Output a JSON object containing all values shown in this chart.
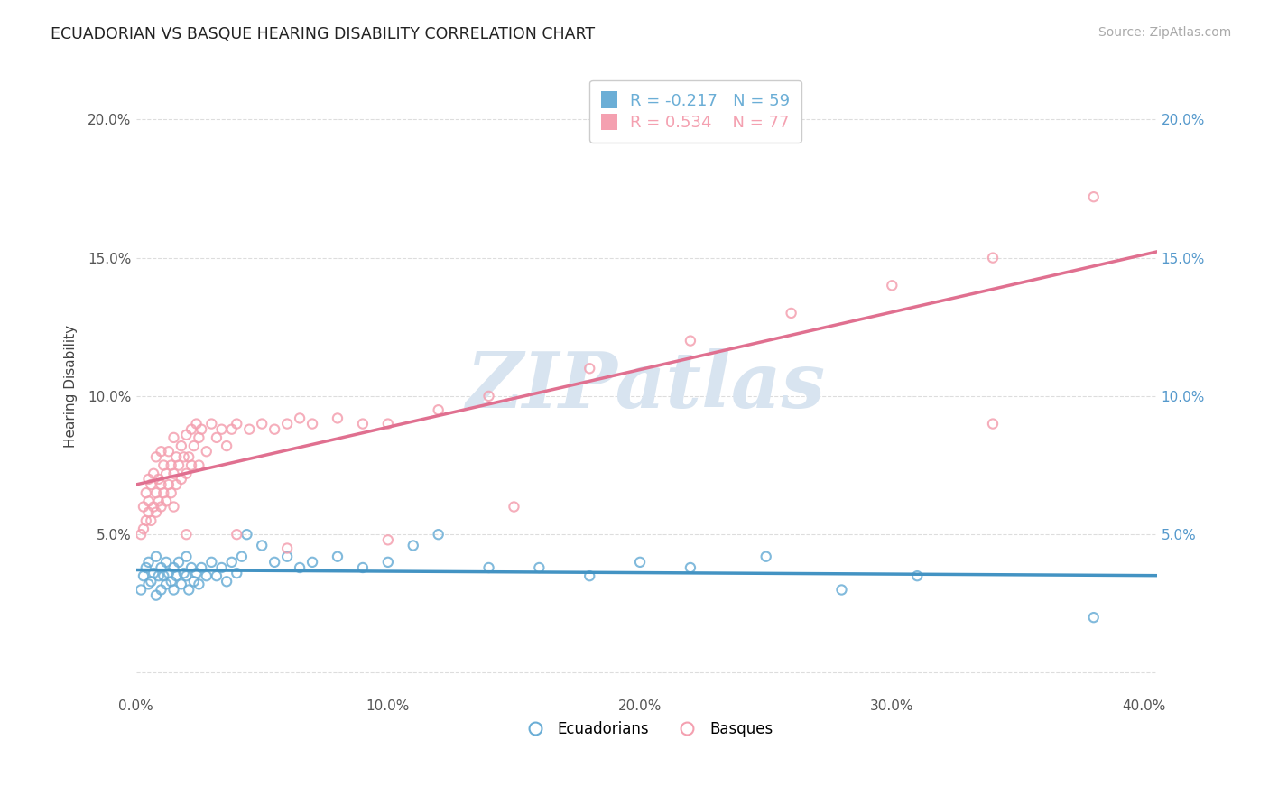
{
  "title": "ECUADORIAN VS BASQUE HEARING DISABILITY CORRELATION CHART",
  "source": "Source: ZipAtlas.com",
  "ylabel": "Hearing Disability",
  "xlim": [
    0.0,
    0.405
  ],
  "ylim": [
    -0.008,
    0.215
  ],
  "xticks": [
    0.0,
    0.1,
    0.2,
    0.3,
    0.4
  ],
  "xtick_labels": [
    "0.0%",
    "10.0%",
    "20.0%",
    "30.0%",
    "40.0%"
  ],
  "yticks": [
    0.0,
    0.05,
    0.1,
    0.15,
    0.2
  ],
  "left_ytick_labels": [
    "",
    "5.0%",
    "10.0%",
    "15.0%",
    "20.0%"
  ],
  "right_ytick_labels": [
    "",
    "5.0%",
    "10.0%",
    "15.0%",
    "20.0%"
  ],
  "ecuadorian_color": "#6baed6",
  "basque_color": "#f4a0b0",
  "trend_ecu_color": "#4393c3",
  "trend_bas_color": "#e07090",
  "ecuadorian_R": -0.217,
  "ecuadorian_N": 59,
  "basque_R": 0.534,
  "basque_N": 77,
  "watermark": "ZIPatlas",
  "watermark_color": "#d8e4f0",
  "legend_ecuadorians": "Ecuadorians",
  "legend_basques": "Basques",
  "ecu_x": [
    0.002,
    0.003,
    0.004,
    0.005,
    0.005,
    0.006,
    0.007,
    0.008,
    0.008,
    0.009,
    0.01,
    0.01,
    0.011,
    0.012,
    0.012,
    0.013,
    0.014,
    0.015,
    0.015,
    0.016,
    0.017,
    0.018,
    0.019,
    0.02,
    0.02,
    0.021,
    0.022,
    0.023,
    0.024,
    0.025,
    0.026,
    0.028,
    0.03,
    0.032,
    0.034,
    0.036,
    0.038,
    0.04,
    0.042,
    0.044,
    0.05,
    0.055,
    0.06,
    0.065,
    0.07,
    0.08,
    0.09,
    0.1,
    0.11,
    0.12,
    0.14,
    0.16,
    0.18,
    0.2,
    0.22,
    0.25,
    0.28,
    0.31,
    0.38
  ],
  "ecu_y": [
    0.03,
    0.035,
    0.038,
    0.032,
    0.04,
    0.033,
    0.036,
    0.028,
    0.042,
    0.035,
    0.03,
    0.038,
    0.035,
    0.032,
    0.04,
    0.036,
    0.033,
    0.038,
    0.03,
    0.035,
    0.04,
    0.032,
    0.036,
    0.035,
    0.042,
    0.03,
    0.038,
    0.033,
    0.036,
    0.032,
    0.038,
    0.035,
    0.04,
    0.035,
    0.038,
    0.033,
    0.04,
    0.036,
    0.042,
    0.05,
    0.046,
    0.04,
    0.042,
    0.038,
    0.04,
    0.042,
    0.038,
    0.04,
    0.046,
    0.05,
    0.038,
    0.038,
    0.035,
    0.04,
    0.038,
    0.042,
    0.03,
    0.035,
    0.02
  ],
  "bas_x": [
    0.002,
    0.003,
    0.003,
    0.004,
    0.004,
    0.005,
    0.005,
    0.005,
    0.006,
    0.006,
    0.007,
    0.007,
    0.008,
    0.008,
    0.008,
    0.009,
    0.009,
    0.01,
    0.01,
    0.01,
    0.011,
    0.011,
    0.012,
    0.012,
    0.013,
    0.013,
    0.014,
    0.014,
    0.015,
    0.015,
    0.015,
    0.016,
    0.016,
    0.017,
    0.018,
    0.018,
    0.019,
    0.02,
    0.02,
    0.021,
    0.022,
    0.022,
    0.023,
    0.024,
    0.025,
    0.025,
    0.026,
    0.028,
    0.03,
    0.032,
    0.034,
    0.036,
    0.038,
    0.04,
    0.045,
    0.05,
    0.055,
    0.06,
    0.065,
    0.07,
    0.08,
    0.09,
    0.1,
    0.12,
    0.14,
    0.18,
    0.22,
    0.26,
    0.3,
    0.34,
    0.38,
    0.34,
    0.15,
    0.1,
    0.06,
    0.04,
    0.02
  ],
  "bas_y": [
    0.05,
    0.052,
    0.06,
    0.055,
    0.065,
    0.058,
    0.062,
    0.07,
    0.055,
    0.068,
    0.06,
    0.072,
    0.058,
    0.065,
    0.078,
    0.062,
    0.07,
    0.06,
    0.068,
    0.08,
    0.065,
    0.075,
    0.062,
    0.072,
    0.068,
    0.08,
    0.065,
    0.075,
    0.06,
    0.072,
    0.085,
    0.068,
    0.078,
    0.075,
    0.07,
    0.082,
    0.078,
    0.072,
    0.086,
    0.078,
    0.075,
    0.088,
    0.082,
    0.09,
    0.075,
    0.085,
    0.088,
    0.08,
    0.09,
    0.085,
    0.088,
    0.082,
    0.088,
    0.09,
    0.088,
    0.09,
    0.088,
    0.09,
    0.092,
    0.09,
    0.092,
    0.09,
    0.09,
    0.095,
    0.1,
    0.11,
    0.12,
    0.13,
    0.14,
    0.15,
    0.172,
    0.09,
    0.06,
    0.048,
    0.045,
    0.05,
    0.05
  ]
}
